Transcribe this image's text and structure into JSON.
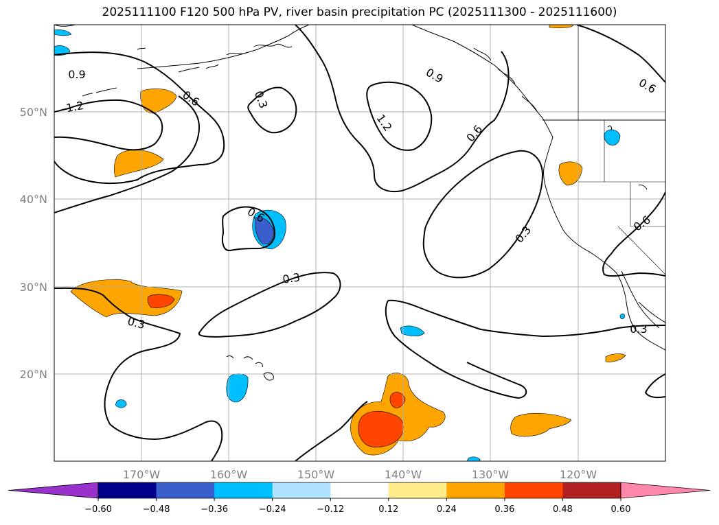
{
  "title": "2025111100 F120 500 hPa PV, river basin precipitation PC (2025111300 - 2025111600)",
  "lat_labels": [
    "50°N",
    "40°N",
    "30°N",
    "20°N"
  ],
  "lon_labels": [
    "170°W",
    "160°W",
    "150°W",
    "140°W",
    "130°W",
    "120°W"
  ],
  "contour_labels": [
    "0.9",
    "1.2",
    "0.6",
    "0.3",
    "0.9",
    "1.2",
    "0.6",
    "0.6",
    "0.3",
    "0.6",
    "0.3",
    "0.3",
    "0.6",
    "0.3"
  ],
  "colorbar": {
    "colors": [
      "#9932cc",
      "#00008b",
      "#3a5fcd",
      "#00bfff",
      "#b0e2ff",
      "#ffffff",
      "#ffec8b",
      "#ffa500",
      "#ff4500",
      "#b22222",
      "#ff88aa"
    ],
    "tick_labels": [
      "−0.60",
      "−0.48",
      "−0.36",
      "−0.24",
      "−0.12",
      "0.12",
      "0.24",
      "0.36",
      "0.48",
      "0.60"
    ]
  },
  "colors": {
    "positive_low": "#ffa500",
    "positive_mid": "#ff4500",
    "negative_low": "#00bfff",
    "negative_mid": "#3a5fcd",
    "grid": "#b0b0b0"
  }
}
